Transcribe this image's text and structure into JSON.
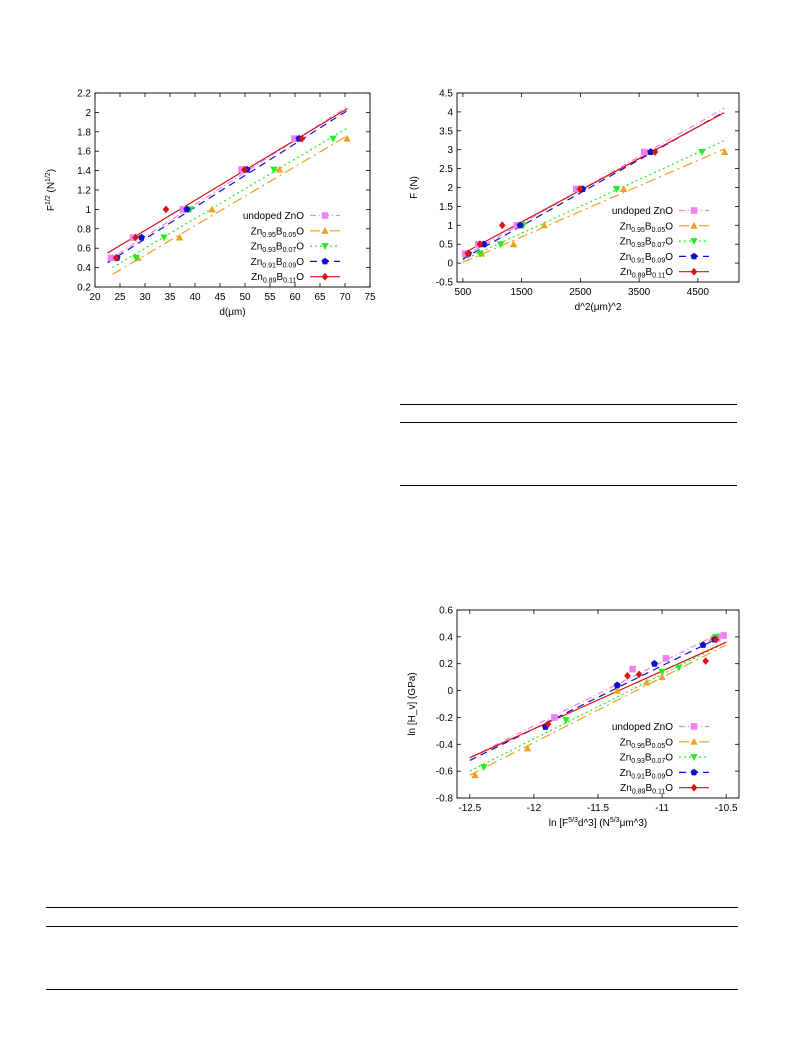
{
  "chart_data": [
    {
      "type": "scatter",
      "title": "",
      "xlabel": "d(μm)",
      "ylabel": "F^{1/2} (N^{1/2})",
      "xlim": [
        20,
        75
      ],
      "ylim": [
        0.2,
        2.2
      ],
      "xticks": [
        20,
        25,
        30,
        35,
        40,
        45,
        50,
        55,
        60,
        65,
        70,
        75
      ],
      "yticks": [
        0.2,
        0.4,
        0.6,
        0.8,
        1,
        1.2,
        1.4,
        1.6,
        1.8,
        2,
        2.2
      ],
      "grid": false,
      "legend_position": "bottom-right",
      "series": [
        {
          "key": "s0",
          "x": [
            23.2,
            27.6,
            37.6,
            49.3,
            59.9
          ],
          "y": [
            0.5,
            0.71,
            1.0,
            1.41,
            1.73
          ],
          "fit": [
            [
              22.5,
              0.47
            ],
            [
              70.5,
              2.06
            ]
          ]
        },
        {
          "key": "s1",
          "x": [
            28.6,
            36.9,
            43.4,
            56.9,
            70.4
          ],
          "y": [
            0.5,
            0.71,
            1.0,
            1.41,
            1.73
          ],
          "fit": [
            [
              23.5,
              0.33
            ],
            [
              70.5,
              1.76
            ]
          ]
        },
        {
          "key": "s2",
          "x": [
            28.2,
            33.8,
            39.1,
            55.8,
            67.6
          ],
          "y": [
            0.5,
            0.71,
            1.0,
            1.41,
            1.73
          ],
          "fit": [
            [
              23.5,
              0.4
            ],
            [
              70.5,
              1.84
            ]
          ]
        },
        {
          "key": "s3",
          "x": [
            24.4,
            29.3,
            38.4,
            50.4,
            60.8
          ],
          "y": [
            0.5,
            0.71,
            1.0,
            1.41,
            1.73
          ],
          "fit": [
            [
              22.5,
              0.45
            ],
            [
              70.5,
              2.02
            ]
          ]
        },
        {
          "key": "s4",
          "x": [
            24.2,
            28.1,
            34.2,
            49.9,
            61.4
          ],
          "y": [
            0.5,
            0.71,
            1.0,
            1.41,
            1.73
          ],
          "fit": [
            [
              22.5,
              0.55
            ],
            [
              70.5,
              2.04
            ]
          ]
        }
      ]
    },
    {
      "type": "scatter",
      "title": "",
      "xlabel": "d^2(μm)^2",
      "ylabel": "F (N)",
      "xlim": [
        400,
        5200
      ],
      "ylim": [
        -0.5,
        4.5
      ],
      "xticks": [
        500,
        1500,
        2500,
        3500,
        4500
      ],
      "yticks": [
        -0.5,
        0,
        0.5,
        1,
        1.5,
        2,
        2.5,
        3,
        3.5,
        4,
        4.5
      ],
      "grid": false,
      "legend_position": "bottom-right",
      "series": [
        {
          "key": "s0",
          "x": [
            538,
            762,
            1414,
            2430,
            3588
          ],
          "y": [
            0.25,
            0.5,
            1.0,
            1.96,
            2.94
          ],
          "fit": [
            [
              500,
              0.16
            ],
            [
              4950,
              4.1
            ]
          ]
        },
        {
          "key": "s1",
          "x": [
            818,
            1362,
            1884,
            3238,
            4956
          ],
          "y": [
            0.25,
            0.5,
            1.0,
            1.96,
            2.94
          ],
          "fit": [
            [
              500,
              0.02
            ],
            [
              4950,
              3.02
            ]
          ]
        },
        {
          "key": "s2",
          "x": [
            795,
            1142,
            1529,
            3114,
            4570
          ],
          "y": [
            0.25,
            0.5,
            1.0,
            1.96,
            2.94
          ],
          "fit": [
            [
              500,
              0.08
            ],
            [
              4950,
              3.24
            ]
          ]
        },
        {
          "key": "s3",
          "x": [
            595,
            858,
            1475,
            2540,
            3697
          ],
          "y": [
            0.25,
            0.5,
            1.0,
            1.96,
            2.94
          ],
          "fit": [
            [
              500,
              0.11
            ],
            [
              4950,
              4.0
            ]
          ]
        },
        {
          "key": "s4",
          "x": [
            586,
            790,
            1170,
            2490,
            3770
          ],
          "y": [
            0.25,
            0.5,
            1.0,
            1.96,
            2.94
          ],
          "fit": [
            [
              500,
              0.25
            ],
            [
              4950,
              3.98
            ]
          ]
        }
      ]
    },
    {
      "type": "scatter",
      "title": "",
      "xlabel": "ln [F^{5/3}d^3] (N^{5/3}μm^3)",
      "ylabel": "ln [H_v] (GPa)",
      "xlim": [
        -12.6,
        -10.4
      ],
      "ylim": [
        -0.8,
        0.6
      ],
      "xticks": [
        -12.5,
        -12,
        -11.5,
        -11,
        -10.5
      ],
      "yticks": [
        -0.8,
        -0.6,
        -0.4,
        -0.2,
        0,
        0.2,
        0.4,
        0.6
      ],
      "grid": false,
      "legend_position": "bottom-right",
      "series": [
        {
          "key": "s0",
          "x": [
            -11.84,
            -11.23,
            -10.97,
            -10.57,
            -10.52
          ],
          "y": [
            -0.2,
            0.16,
            0.24,
            0.39,
            0.41
          ],
          "fit": [
            [
              -12.5,
              -0.5
            ],
            [
              -10.5,
              0.45
            ]
          ]
        },
        {
          "key": "s1",
          "x": [
            -12.46,
            -12.05,
            -11.35,
            -11.12,
            -11.0,
            -10.61
          ],
          "y": [
            -0.63,
            -0.43,
            0.0,
            0.06,
            0.1,
            0.39
          ],
          "fit": [
            [
              -12.5,
              -0.63
            ],
            [
              -10.5,
              0.34
            ]
          ]
        },
        {
          "key": "s2",
          "x": [
            -12.39,
            -11.75,
            -11.0,
            -10.87,
            -10.58
          ],
          "y": [
            -0.57,
            -0.22,
            0.14,
            0.17,
            0.4
          ],
          "fit": [
            [
              -12.5,
              -0.6
            ],
            [
              -10.5,
              0.36
            ]
          ]
        },
        {
          "key": "s3",
          "x": [
            -11.91,
            -11.35,
            -11.06,
            -10.68,
            -10.59
          ],
          "y": [
            -0.27,
            0.04,
            0.2,
            0.34,
            0.38
          ],
          "fit": [
            [
              -12.5,
              -0.52
            ],
            [
              -10.5,
              0.42
            ]
          ]
        },
        {
          "key": "s4",
          "x": [
            -11.89,
            -11.27,
            -11.18,
            -10.66,
            -10.58
          ],
          "y": [
            -0.25,
            0.11,
            0.12,
            0.22,
            0.38
          ],
          "fit": [
            [
              -12.5,
              -0.5
            ],
            [
              -10.5,
              0.36
            ]
          ]
        }
      ]
    }
  ],
  "legend": [
    {
      "key": "s0",
      "prefix": "undoped ZnO",
      "sub1": "",
      "mid": "",
      "sub2": "",
      "suffix": "",
      "color": "#ee82ee",
      "marker": "square",
      "dash": "6,3,1,3"
    },
    {
      "key": "s1",
      "prefix": "Zn",
      "sub1": "0.95",
      "mid": "B",
      "sub2": "0.05",
      "suffix": "O",
      "color": "#f0a020",
      "marker": "triangle-up",
      "dash": "10,4,2,4"
    },
    {
      "key": "s2",
      "prefix": "Zn",
      "sub1": "0.93",
      "mid": "B",
      "sub2": "0.07",
      "suffix": "O",
      "color": "#22ee22",
      "marker": "triangle-down",
      "dash": "2,3"
    },
    {
      "key": "s3",
      "prefix": "Zn",
      "sub1": "0.91",
      "mid": "B",
      "sub2": "0.09",
      "suffix": "O",
      "color": "#1010cc",
      "marker": "pentagon",
      "dash": "7,5"
    },
    {
      "key": "s4",
      "prefix": "Zn",
      "sub1": "0.89",
      "mid": "B",
      "sub2": "0.11",
      "suffix": "O",
      "color": "#dd1111",
      "marker": "diamond",
      "dash": ""
    }
  ]
}
